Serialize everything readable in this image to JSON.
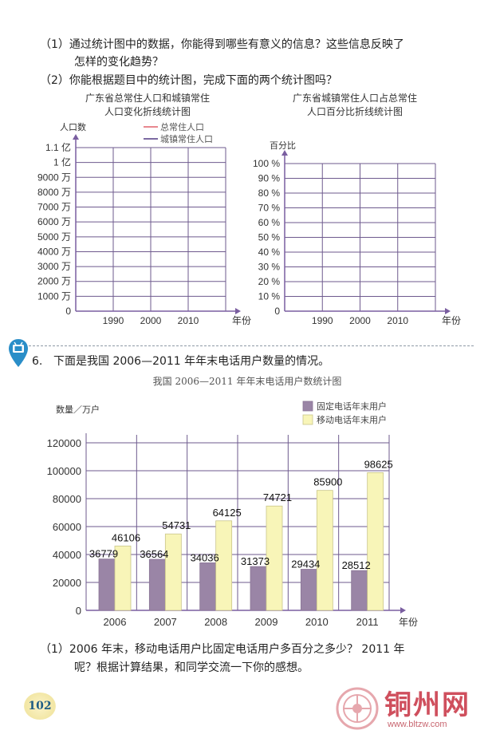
{
  "questions": {
    "q1_line1": "（1）通过统计图中的数据，你能得到哪些有意义的信息？这些信息反映了",
    "q1_line2": "怎样的变化趋势？",
    "q2": "（2）你能根据题目中的统计图，完成下面的两个统计图吗？"
  },
  "left_chart": {
    "title_line1": "广东省总常住人口和城镇常住",
    "title_line2": "人口变化折线统计图",
    "ylabel": "人口数",
    "legend": [
      "总常住人口",
      "城镇常住人口"
    ],
    "y_ticks": [
      "0",
      "1000 万",
      "2000 万",
      "3000 万",
      "4000 万",
      "5000 万",
      "6000 万",
      "7000 万",
      "8000 万",
      "9000 万",
      "1 亿",
      "1.1 亿"
    ],
    "x_ticks": [
      "1990",
      "2000",
      "2010"
    ],
    "xlabel": "年份"
  },
  "right_chart": {
    "title_line1": "广东省城镇常住人口占总常住",
    "title_line2": "人口百分比折线统计图",
    "ylabel": "百分比",
    "y_ticks": [
      "0",
      "10 %",
      "20 %",
      "30 %",
      "40 %",
      "50 %",
      "60 %",
      "70 %",
      "80 %",
      "90 %",
      "100 %"
    ],
    "x_ticks": [
      "1990",
      "2000",
      "2010"
    ],
    "xlabel": "年份"
  },
  "problem6": {
    "number": "6.",
    "text": "下面是我国 2006—2011 年年末电话用户数量的情况。"
  },
  "chart_data": {
    "type": "bar",
    "title": "我国 2006—2011 年年末电话用户数统计图",
    "ylabel": "数量／万户",
    "xlabel": "年份",
    "categories": [
      "2006",
      "2007",
      "2008",
      "2009",
      "2010",
      "2011"
    ],
    "series": [
      {
        "name": "固定电话年末用户",
        "values": [
          36779,
          36564,
          34036,
          31373,
          29434,
          28512
        ],
        "color": "#9a85a6"
      },
      {
        "name": "移动电话年末用户",
        "values": [
          46106,
          54731,
          64125,
          74721,
          85900,
          98625
        ],
        "color": "#f8f5b8"
      }
    ],
    "y_ticks": [
      "0",
      "20000",
      "40000",
      "60000",
      "80000",
      "100000",
      "120000"
    ],
    "ylim": [
      0,
      120000
    ],
    "legend_position": "top-right",
    "grid": true
  },
  "bottom": {
    "q1_line1": "（1）2006 年末，移动电话用户比固定电话用户多百分之多少？ 2011 年",
    "q1_line2": "呢？根据计算结果，和同学交流一下你的感想。"
  },
  "page_number": "102",
  "watermark": {
    "name": "铜州网",
    "url": "www.bltzw.com"
  },
  "colors": {
    "grid_purple": "#6e5a8e",
    "axis_purple": "#7a5ea0",
    "legend_red": "#e8888f",
    "legend_purple": "#7c6aa2",
    "icon_blue": "#2a8ec8"
  }
}
